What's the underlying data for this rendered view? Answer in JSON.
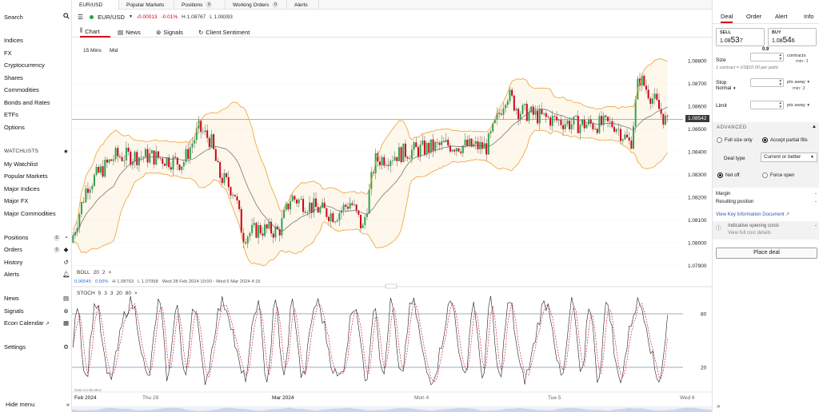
{
  "sidebar": {
    "search": "Search",
    "markets": [
      "Indices",
      "FX",
      "Cryptocurrency",
      "Shares",
      "Commodities",
      "Bonds and Rates",
      "ETFs",
      "Options"
    ],
    "watchlists_title": "WATCHLISTS",
    "watchlists": [
      "My Watchlist",
      "Popular Markets",
      "Major Indices",
      "Major FX",
      "Major Commodities"
    ],
    "positions": {
      "label": "Positions",
      "count": "0"
    },
    "orders": {
      "label": "Orders",
      "count": "0"
    },
    "history": "History",
    "alerts": "Alerts",
    "news": "News",
    "signals": "Signals",
    "econ_calendar": "Econ Calendar",
    "settings": "Settings",
    "hide_menu": "Hide menu"
  },
  "tabs": [
    {
      "label": "EUR/USD"
    },
    {
      "label": "Popular Markets"
    },
    {
      "label": "Positions",
      "count": "0"
    },
    {
      "label": "Working Orders",
      "count": "0"
    },
    {
      "label": "Alerts"
    }
  ],
  "instrument": {
    "name": "EUR/USD",
    "change": "-0.00013",
    "change_pct": "-0.01%",
    "high": "H 1.08767",
    "low": "L 1.08393"
  },
  "subtabs": [
    "Chart",
    "News",
    "Signals",
    "Client Sentiment"
  ],
  "chart_controls": {
    "interval": "15 Mins",
    "mid": "Mid"
  },
  "chart_data": {
    "type": "candlestick",
    "price_axis": [
      "1.08800",
      "1.08700",
      "1.08600",
      "1.08500",
      "1.08400",
      "1.08300",
      "1.08200",
      "1.08100",
      "1.08000",
      "1.07900"
    ],
    "current_price": "1.08542",
    "x_labels": [
      "Feb 2024",
      "Thu 29",
      "Mar 2024",
      "Mon 4",
      "Tue 5",
      "Wed 6"
    ],
    "x_label_bold": [
      true,
      false,
      true,
      false,
      false,
      false
    ],
    "indicator_boll": {
      "name": "BOLL",
      "params": [
        "20",
        "2"
      ],
      "close": "×"
    },
    "info": {
      "a": "0.00545",
      "b": "0.50%",
      "high": "H 1.08763",
      "low": "L 1.07958",
      "range": "Wed 28 Feb 2024 10:00 - Wed 6 Mar 2024 4:15"
    },
    "indicator_stoch": {
      "name": "STOCH",
      "params": [
        "5",
        "3",
        "3",
        "20",
        "80"
      ],
      "close": "×",
      "levels": [
        "80",
        "20"
      ]
    },
    "data_note": "Data is indicative"
  },
  "deal": {
    "tabs": [
      "Deal",
      "Order",
      "Alert",
      "Info"
    ],
    "sell": {
      "label": "SELL",
      "prefix": "1.08",
      "big": "53",
      "last": "7"
    },
    "buy": {
      "label": "BUY",
      "prefix": "1.08",
      "big": "54",
      "last": "6"
    },
    "spread": "0.9",
    "size_label": "Size",
    "size_unit": "contracts",
    "size_min": "min: 1",
    "size_note": "1 contract = US$10.00 per point",
    "stop_label": "Stop",
    "stop_type": "Normal",
    "stop_unit": "pts away",
    "stop_min": "min: 2",
    "limit_label": "Limit",
    "limit_unit": "pts away",
    "advanced": "ADVANCED",
    "full_size": "Full size only",
    "partial": "Accept partial fills",
    "deal_type_label": "Deal type",
    "deal_type_value": "Current or better",
    "net_off": "Net off",
    "force_open": "Force open",
    "margin": "Margin",
    "margin_value": "-",
    "resulting_position": "Resulting position",
    "resulting_value": "-",
    "kid_link": "View Key Information Document",
    "costs_title": "Indicative opening costs",
    "costs_link": "View full cost details",
    "costs_value": "-",
    "place_deal": "Place deal"
  }
}
